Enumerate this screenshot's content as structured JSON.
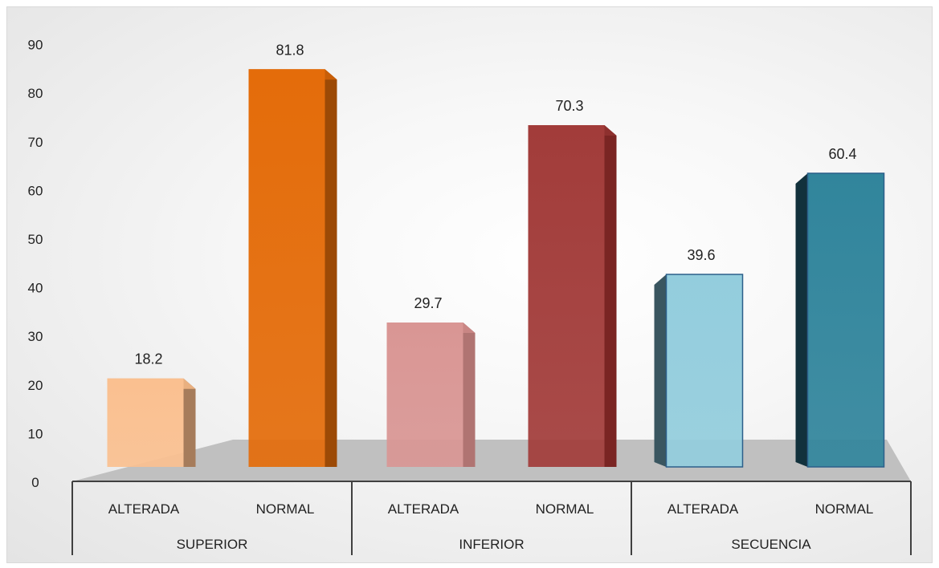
{
  "chart_data": {
    "type": "bar",
    "title": "",
    "xlabel": "",
    "ylabel": "",
    "ylim": [
      0,
      90
    ],
    "yticks": [
      0,
      10,
      20,
      30,
      40,
      50,
      60,
      70,
      80,
      90
    ],
    "grid": false,
    "legend": "none",
    "groups": [
      {
        "name": "SUPERIOR",
        "bars": [
          {
            "label": "ALTERADA",
            "value": 18.2,
            "front": "#FAC090",
            "side": "#A67C5B",
            "top": "#E9B080"
          },
          {
            "label": "NORMAL",
            "value": 81.8,
            "front": "#E46C0A",
            "side": "#9C4A06",
            "top": "#C85E08"
          }
        ]
      },
      {
        "name": "INFERIOR",
        "bars": [
          {
            "label": "ALTERADA",
            "value": 29.7,
            "front": "#D99694",
            "side": "#B07472",
            "top": "#C98684"
          },
          {
            "label": "NORMAL",
            "value": 70.3,
            "front": "#A23C3A",
            "side": "#7A2523",
            "top": "#8E302E"
          }
        ]
      },
      {
        "name": "SECUENCIA",
        "bars": [
          {
            "label": "ALTERADA",
            "value": 39.6,
            "front": "#93CDDD",
            "side": "#3A5660",
            "top": "#B0E0EE"
          },
          {
            "label": "NORMAL",
            "value": 60.4,
            "front": "#31859C",
            "side": "#12313C",
            "top": "#2A7389"
          }
        ]
      }
    ]
  }
}
